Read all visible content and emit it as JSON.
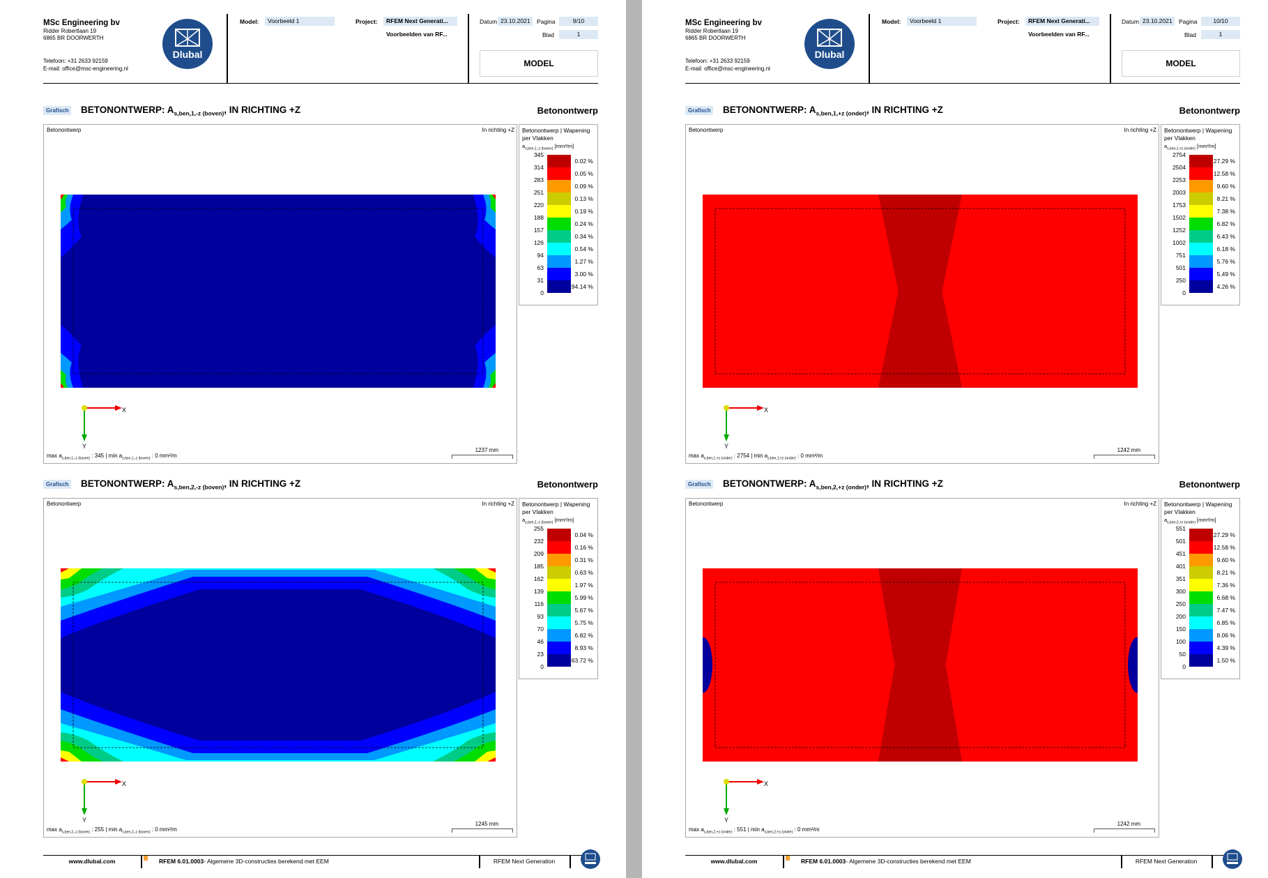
{
  "company": {
    "name": "MSc Engineering bv",
    "address1": "Ridder Robertlaan 19",
    "address2": "6865 BR DOORWERTH",
    "phone": "Telefoon: +31 2633 92159",
    "email": "E-mail: office@msc-engineering.nl"
  },
  "logo_text": "Dlubal",
  "header_labels": {
    "model": "Model:",
    "project": "Project:",
    "datum": "Datum",
    "pagina": "Pagina",
    "blad": "Blad"
  },
  "model_name": "Voorbeeld 1",
  "project_line1": "RFEM Next Generati...",
  "project_line2": "Voorbeelden van RF...",
  "date": "23.10.2021",
  "blad": "1",
  "model_box": "MODEL",
  "section_badge": "Grafisch",
  "section_right": "Betonontwerp",
  "graphic_label": "Betonontwerp",
  "direction": "In richting +Z",
  "legend_title": "Betonontwerp | Wapening per Vlakken",
  "axis": {
    "x": "X",
    "y": "Y"
  },
  "colors": [
    "#c00000",
    "#ff0000",
    "#ff9900",
    "#cccc00",
    "#ffff00",
    "#00dd00",
    "#00cc88",
    "#00ffff",
    "#0099ff",
    "#0000ff",
    "#00009c"
  ],
  "footer": {
    "url": "www.dlubal.com",
    "product_bold": "RFEM 6.01.0003",
    "product_rest": "- Algemene 3D-constructies berekend met EEM",
    "generation": "RFEM Next Generation"
  },
  "pages": [
    {
      "pagina": "9/10",
      "sections": [
        {
          "title_pre": "BETONONTWERP: A",
          "title_sub": "s,ben,1,-z (boven)",
          "title_post": ", IN RICHTING +Z",
          "legend_unit_sub": "s,ben,1,-z (boven)",
          "legend_unit": "[mm²/m]",
          "legend_values": [
            "345",
            "314",
            "283",
            "251",
            "220",
            "188",
            "157",
            "126",
            "94",
            "63",
            "31",
            "0"
          ],
          "legend_percents": [
            "0.02 %",
            "0.05 %",
            "0.09 %",
            "0.13 %",
            "0.19 %",
            "0.24 %",
            "0.34 %",
            "0.54 %",
            "1.27 %",
            "3.00 %",
            "94.14 %"
          ],
          "scale": "1237 mm",
          "max_sub": "s,ben,1,-z (boven)",
          "max_val": " : 345",
          "min_sub": "s,ben,1,-z (boven)",
          "min_val": " : 0 mm²/m"
        },
        {
          "title_pre": "BETONONTWERP: A",
          "title_sub": "s,ben,2,-z (boven)",
          "title_post": ", IN RICHTING +Z",
          "legend_unit_sub": "s,ben,2,-z (boven)",
          "legend_unit": "[mm²/m]",
          "legend_values": [
            "255",
            "232",
            "209",
            "185",
            "162",
            "139",
            "116",
            "93",
            "70",
            "46",
            "23",
            "0"
          ],
          "legend_percents": [
            "0.04 %",
            "0.16 %",
            "0.31 %",
            "0.63 %",
            "1.97 %",
            "5.99 %",
            "5.67 %",
            "5.75 %",
            "6.82 %",
            "8.93 %",
            "63.72 %"
          ],
          "scale": "1245 mm",
          "max_sub": "s,ben,2,-z (boven)",
          "max_val": " : 255",
          "min_sub": "s,ben,2,-z (boven)",
          "min_val": " : 0 mm²/m"
        }
      ]
    },
    {
      "pagina": "10/10",
      "sections": [
        {
          "title_pre": "BETONONTWERP: A",
          "title_sub": "s,ben,1,+z (onder)",
          "title_post": ", IN RICHTING +Z",
          "legend_unit_sub": "s,ben,1,+z (onder)",
          "legend_unit": "[mm²/m]",
          "legend_values": [
            "2754",
            "2504",
            "2253",
            "2003",
            "1753",
            "1502",
            "1252",
            "1002",
            "751",
            "501",
            "250",
            "0"
          ],
          "legend_percents": [
            "27.29 %",
            "12.58 %",
            "9.60 %",
            "8.21 %",
            "7.38 %",
            "6.82 %",
            "6.43 %",
            "6.18 %",
            "5.76 %",
            "5.49 %",
            "4.26 %"
          ],
          "scale": "1242 mm",
          "max_sub": "s,ben,1,+z (onder)",
          "max_val": " : 2754",
          "min_sub": "s,ben,1,+z (onder)",
          "min_val": " : 0 mm²/m"
        },
        {
          "title_pre": "BETONONTWERP: A",
          "title_sub": "s,ben,2,+z (onder)",
          "title_post": ", IN RICHTING +Z",
          "legend_unit_sub": "s,ben,2,+z (onder)",
          "legend_unit": "[mm²/m]",
          "legend_values": [
            "551",
            "501",
            "451",
            "401",
            "351",
            "300",
            "250",
            "200",
            "150",
            "100",
            "50",
            "0"
          ],
          "legend_percents": [
            "27.29 %",
            "12.58 %",
            "9.60 %",
            "8.21 %",
            "7.36 %",
            "6.68 %",
            "7.47 %",
            "6.85 %",
            "8.06 %",
            "4.39 %",
            "1.50 %"
          ],
          "scale": "1242 mm",
          "max_sub": "s,ben,2,+z (onder)",
          "max_val": " : 551",
          "min_sub": "s,ben,2,+z (onder)",
          "min_val": " : 0 mm²/m"
        }
      ]
    }
  ]
}
